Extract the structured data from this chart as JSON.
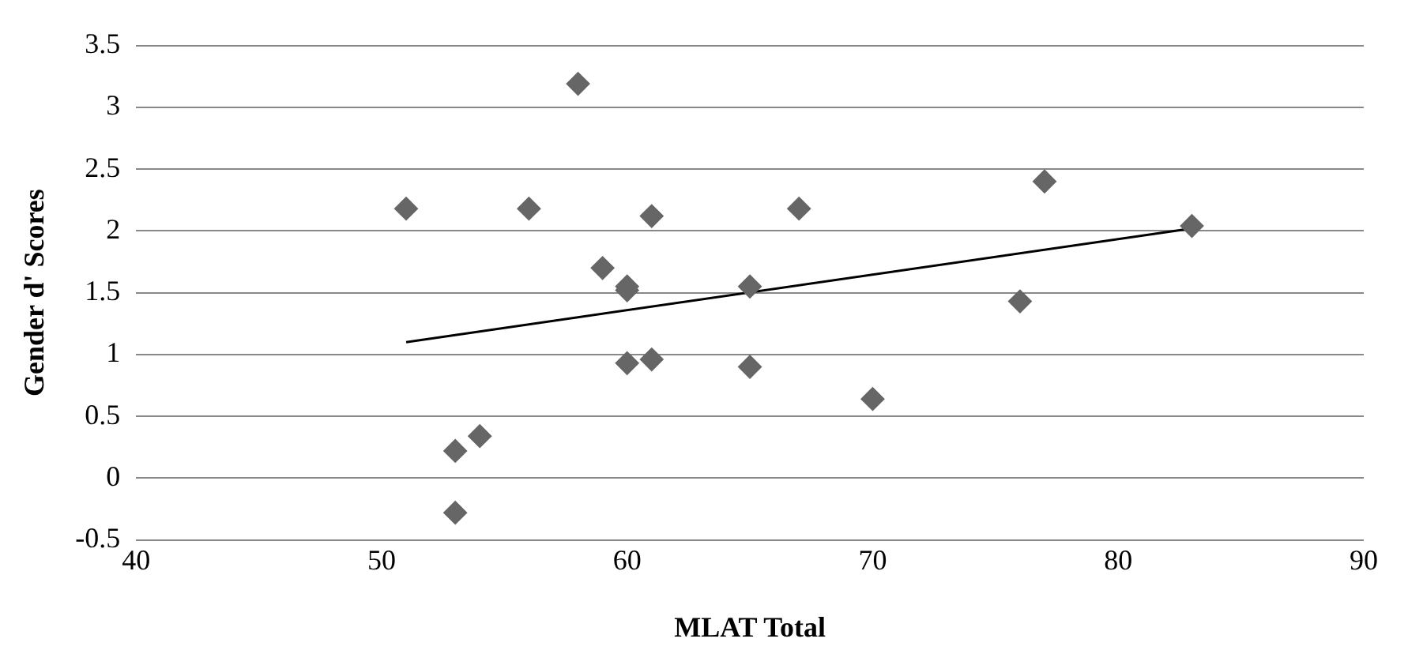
{
  "chart_data": {
    "type": "scatter",
    "xlabel": "MLAT Total",
    "ylabel": "Gender d' Scores",
    "xlim": [
      40,
      90
    ],
    "xticks": [
      40,
      50,
      60,
      70,
      80,
      90
    ],
    "ylim": [
      -0.5,
      3.5
    ],
    "yticks": [
      -0.5,
      0,
      0.5,
      1,
      1.5,
      2,
      2.5,
      3,
      3.5
    ],
    "grid": "y",
    "legend": false,
    "marker": "diamond",
    "series": [
      {
        "color": "#666666",
        "x": [
          51,
          53,
          53,
          54,
          56,
          58,
          59,
          60,
          60,
          60,
          61,
          61,
          65,
          65,
          67,
          70,
          76,
          77,
          83
        ],
        "values": [
          2.18,
          0.22,
          -0.28,
          0.34,
          2.18,
          3.19,
          1.7,
          1.55,
          1.52,
          0.93,
          2.12,
          0.96,
          1.55,
          0.9,
          2.18,
          0.64,
          1.43,
          2.4,
          2.04
        ]
      },
      {
        "type": "line",
        "color": "#000000",
        "marker": "none",
        "line_style": "solid",
        "x": [
          51,
          83
        ],
        "values": [
          1.1,
          2.02
        ]
      }
    ]
  }
}
